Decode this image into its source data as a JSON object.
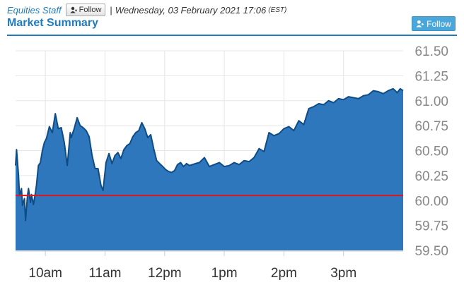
{
  "header": {
    "author": "Equities Staff",
    "follow_small": "Follow",
    "separator": "|",
    "datetime": "Wednesday, 03 February 2021 17:06",
    "timezone": "(EST)",
    "title": "Market Summary",
    "follow_large": "Follow"
  },
  "colors": {
    "accent": "#1d7cc1",
    "area_fill": "#2f77bd",
    "line": "#0e4c86",
    "reference": "#e0141e",
    "grid": "#e6e6e6"
  },
  "chart_data": {
    "type": "area",
    "ylim": [
      59.5,
      61.5
    ],
    "yticks": [
      "61.50",
      "61.25",
      "61.00",
      "60.75",
      "60.50",
      "60.25",
      "60.00",
      "59.75",
      "59.50"
    ],
    "xticks": [
      "10am",
      "11am",
      "12pm",
      "1pm",
      "2pm",
      "3pm"
    ],
    "reference_line": 60.05,
    "series": [
      {
        "x": [
          "09:30",
          "09:31",
          "09:33",
          "09:34",
          "09:36",
          "09:37",
          "09:39",
          "09:40",
          "09:42",
          "09:43",
          "09:45",
          "09:46",
          "09:48",
          "09:50",
          "09:51",
          "09:53",
          "09:55",
          "09:57",
          "09:59",
          "10:01",
          "10:04",
          "10:07",
          "10:10",
          "10:13",
          "10:16",
          "10:19",
          "10:22",
          "10:25",
          "10:26",
          "10:29",
          "10:32",
          "10:35",
          "10:38",
          "10:41",
          "10:44",
          "10:47",
          "10:50",
          "10:53",
          "10:56",
          "10:58",
          "11:01",
          "11:04",
          "11:07",
          "11:10",
          "11:13",
          "11:16",
          "11:19",
          "11:22",
          "11:25",
          "11:28",
          "11:31",
          "11:34",
          "11:37",
          "11:40",
          "11:43",
          "11:46",
          "11:49",
          "11:52",
          "11:55",
          "11:58",
          "12:01",
          "12:04",
          "12:07",
          "12:10",
          "12:13",
          "12:16",
          "12:19",
          "12:22",
          "12:25",
          "12:28",
          "12:31",
          "12:35",
          "12:40",
          "12:45",
          "12:50",
          "12:55",
          "13:00",
          "13:05",
          "13:10",
          "13:15",
          "13:20",
          "13:25",
          "13:30",
          "13:35",
          "13:40",
          "13:45",
          "13:50",
          "13:55",
          "14:00",
          "14:05",
          "14:10",
          "14:15",
          "14:20",
          "14:25",
          "14:30",
          "14:35",
          "14:40",
          "14:45",
          "14:50",
          "14:55",
          "15:00",
          "15:05",
          "15:10",
          "15:15",
          "15:20",
          "15:25",
          "15:30",
          "15:35",
          "15:40",
          "15:45",
          "15:50",
          "15:54",
          "15:57",
          "16:00"
        ],
        "y": [
          60.35,
          60.51,
          60.25,
          60.05,
          60.12,
          59.95,
          60.02,
          59.8,
          60.05,
          60.12,
          59.98,
          60.06,
          59.96,
          60.08,
          60.15,
          60.35,
          60.38,
          60.5,
          60.58,
          60.62,
          60.74,
          60.68,
          60.87,
          60.72,
          60.73,
          60.58,
          60.35,
          60.68,
          60.63,
          60.72,
          60.83,
          60.75,
          60.73,
          60.7,
          60.64,
          60.45,
          60.32,
          60.32,
          60.15,
          60.1,
          60.38,
          60.47,
          60.37,
          60.45,
          60.48,
          60.42,
          60.51,
          60.55,
          60.57,
          60.64,
          60.68,
          60.7,
          60.78,
          60.72,
          60.63,
          60.66,
          60.52,
          60.4,
          60.37,
          60.34,
          60.31,
          60.29,
          60.28,
          60.3,
          60.36,
          60.38,
          60.34,
          60.37,
          60.35,
          60.36,
          60.37,
          60.38,
          60.43,
          60.34,
          60.36,
          60.38,
          60.34,
          60.35,
          60.38,
          60.36,
          60.4,
          60.39,
          60.43,
          60.52,
          60.49,
          60.68,
          60.65,
          60.67,
          60.72,
          60.74,
          60.7,
          60.8,
          60.76,
          60.92,
          60.94,
          60.97,
          60.96,
          61.0,
          60.98,
          61.02,
          61.01,
          61.04,
          61.03,
          61.02,
          61.05,
          61.06,
          61.1,
          61.09,
          61.07,
          61.1,
          61.12,
          61.08,
          61.12,
          61.1
        ]
      }
    ],
    "grid": true,
    "legend": "none"
  }
}
